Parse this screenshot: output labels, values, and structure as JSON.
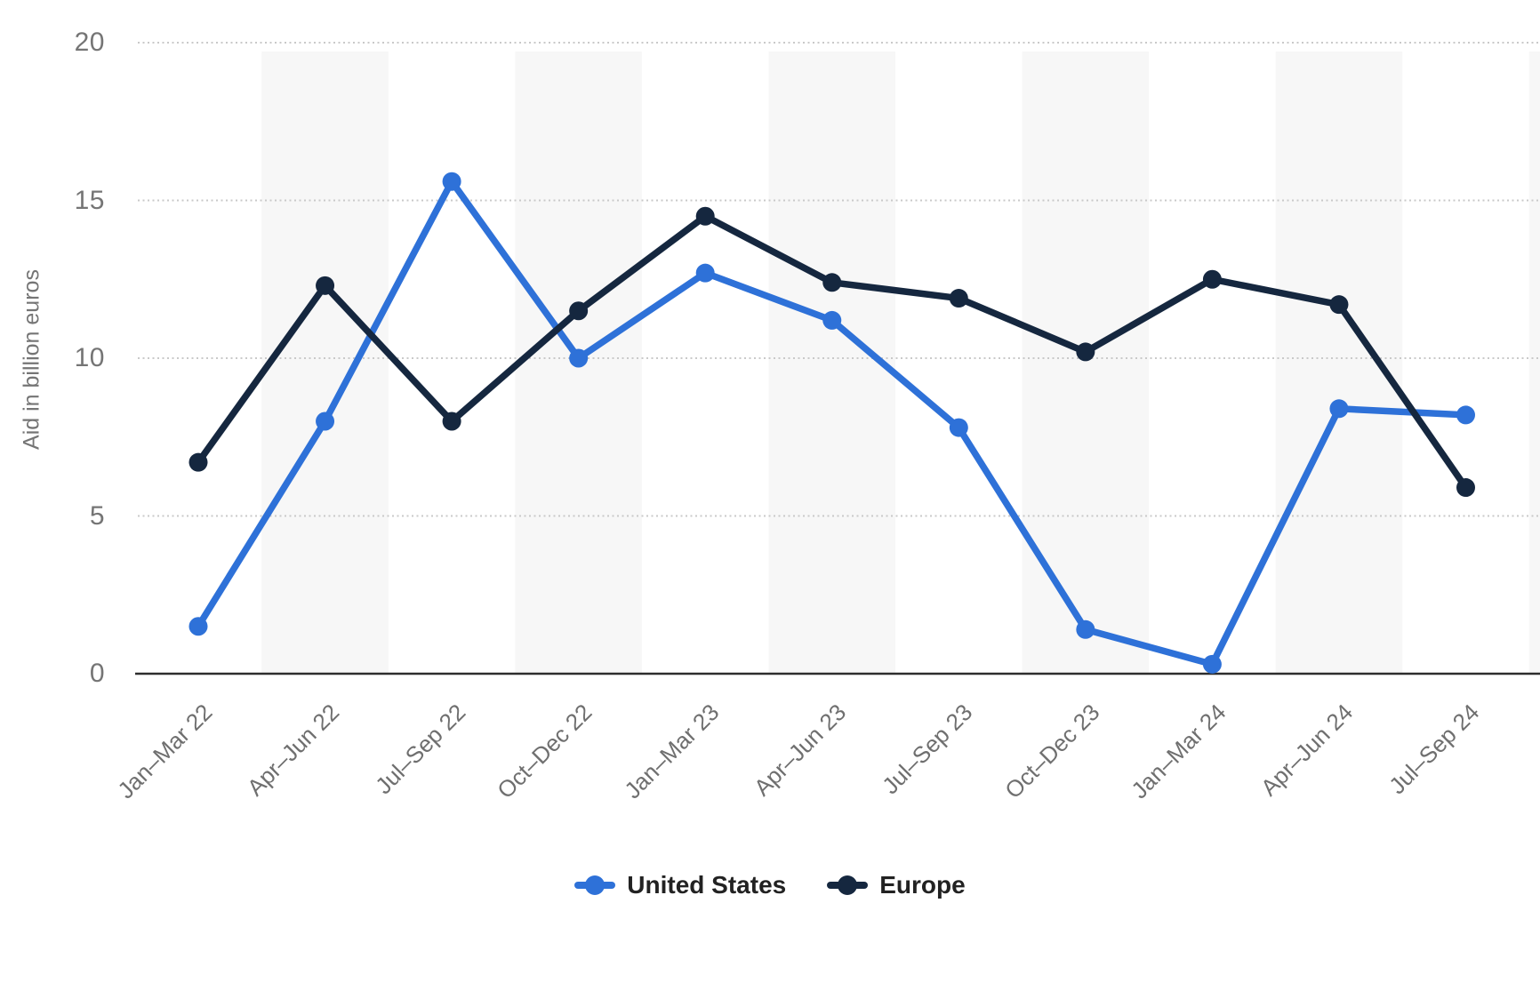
{
  "chart_data": {
    "type": "line",
    "title": "",
    "xlabel": "",
    "ylabel": "Aid in billion euros",
    "categories": [
      "Jan–Mar 22",
      "Apr–Jun 22",
      "Jul–Sep 22",
      "Oct–Dec 22",
      "Jan–Mar 23",
      "Apr–Jun 23",
      "Jul–Sep 23",
      "Oct–Dec 23",
      "Jan–Mar 24",
      "Apr–Jun 24",
      "Jul–Sep 24"
    ],
    "series": [
      {
        "name": "United States",
        "color": "#2e71d8",
        "values": [
          1.5,
          8.0,
          15.6,
          10.0,
          12.7,
          11.2,
          7.8,
          1.4,
          0.3,
          8.4,
          8.2
        ]
      },
      {
        "name": "Europe",
        "color": "#15273f",
        "values": [
          6.7,
          12.3,
          8.0,
          11.5,
          14.5,
          12.4,
          11.9,
          10.2,
          12.5,
          11.7,
          5.9
        ]
      }
    ],
    "ylim": [
      0,
      20
    ],
    "y_ticks": [
      0,
      5,
      10,
      15,
      20
    ],
    "grid": "horizontal dotted",
    "legend_position": "bottom-center",
    "plot_band_color": "#f7f7f7",
    "plot_bands_on": "alternating categories starting with second"
  },
  "legend": {
    "items": [
      {
        "label": "United States",
        "color": "#2e71d8"
      },
      {
        "label": "Europe",
        "color": "#15273f"
      }
    ]
  },
  "styles": {
    "gridline_color": "#c9c9c9",
    "axis_line_color": "#2d2d2d",
    "tick_label_color": "#757575",
    "background": "#ffffff"
  }
}
